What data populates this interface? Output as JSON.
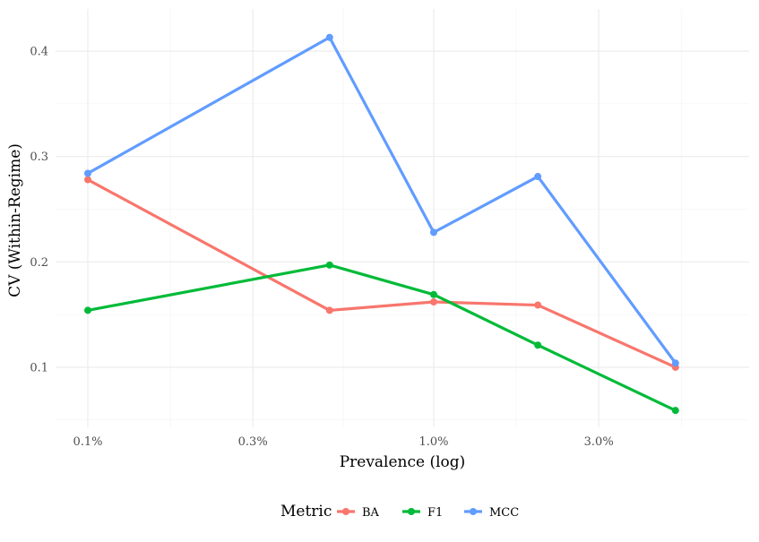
{
  "chart_data": {
    "type": "line",
    "xlabel": "Prevalence (log)",
    "ylabel": "CV (Within-Regime)",
    "x_scale": "log",
    "x": [
      0.1,
      0.5,
      1.0,
      2.0,
      5.0
    ],
    "x_ticks": [
      {
        "value": 0.1,
        "label": "0.1%"
      },
      {
        "value": 0.3,
        "label": "0.3%"
      },
      {
        "value": 1.0,
        "label": "1.0%"
      },
      {
        "value": 3.0,
        "label": "3.0%"
      }
    ],
    "y_ticks": [
      {
        "value": 0.1,
        "label": "0.1"
      },
      {
        "value": 0.2,
        "label": "0.2"
      },
      {
        "value": 0.3,
        "label": "0.3"
      },
      {
        "value": 0.4,
        "label": "0.4"
      }
    ],
    "ylim": [
      0.043,
      0.44
    ],
    "grid": true,
    "legend": {
      "title": "Metric",
      "position": "bottom"
    },
    "series": [
      {
        "name": "BA",
        "color": "#F8766D",
        "values": [
          0.278,
          0.154,
          0.162,
          0.159,
          0.1
        ]
      },
      {
        "name": "F1",
        "color": "#00BA38",
        "values": [
          0.154,
          0.197,
          0.169,
          0.121,
          0.059
        ]
      },
      {
        "name": "MCC",
        "color": "#619CFF",
        "values": [
          0.284,
          0.413,
          0.228,
          0.281,
          0.104
        ]
      }
    ]
  }
}
